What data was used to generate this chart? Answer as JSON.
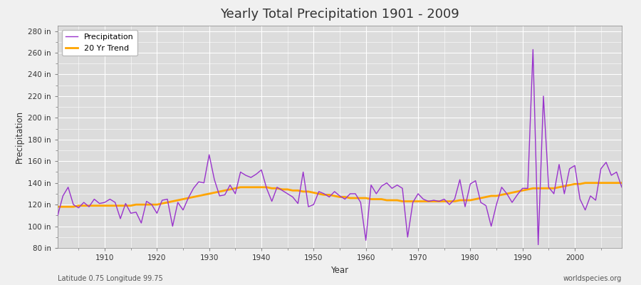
{
  "title": "Yearly Total Precipitation 1901 - 2009",
  "xlabel": "Year",
  "ylabel": "Precipitation",
  "subtitle": "Latitude 0.75 Longitude 99.75",
  "watermark": "worldspecies.org",
  "precip_color": "#9933CC",
  "trend_color": "#FFA500",
  "bg_color": "#DCDCDC",
  "fig_bg_color": "#F0F0F0",
  "ylim": [
    80,
    285
  ],
  "yticks": [
    80,
    100,
    120,
    140,
    160,
    180,
    200,
    220,
    240,
    260,
    280
  ],
  "xticks": [
    1910,
    1920,
    1930,
    1940,
    1950,
    1960,
    1970,
    1980,
    1990,
    2000
  ],
  "legend_labels": [
    "Precipitation",
    "20 Yr Trend"
  ],
  "years": [
    1901,
    1902,
    1903,
    1904,
    1905,
    1906,
    1907,
    1908,
    1909,
    1910,
    1911,
    1912,
    1913,
    1914,
    1915,
    1916,
    1917,
    1918,
    1919,
    1920,
    1921,
    1922,
    1923,
    1924,
    1925,
    1926,
    1927,
    1928,
    1929,
    1930,
    1931,
    1932,
    1933,
    1934,
    1935,
    1936,
    1937,
    1938,
    1939,
    1940,
    1941,
    1942,
    1943,
    1944,
    1945,
    1946,
    1947,
    1948,
    1949,
    1950,
    1951,
    1952,
    1953,
    1954,
    1955,
    1956,
    1957,
    1958,
    1959,
    1960,
    1961,
    1962,
    1963,
    1964,
    1965,
    1966,
    1967,
    1968,
    1969,
    1970,
    1971,
    1972,
    1973,
    1974,
    1975,
    1976,
    1977,
    1978,
    1979,
    1980,
    1981,
    1982,
    1983,
    1984,
    1985,
    1986,
    1987,
    1988,
    1989,
    1990,
    1991,
    1992,
    1993,
    1994,
    1995,
    1996,
    1997,
    1998,
    1999,
    2000,
    2001,
    2002,
    2003,
    2004,
    2005,
    2006,
    2007,
    2008,
    2009
  ],
  "precip": [
    110,
    128,
    136,
    120,
    117,
    122,
    118,
    125,
    121,
    122,
    125,
    122,
    107,
    121,
    112,
    113,
    103,
    123,
    120,
    112,
    124,
    125,
    100,
    122,
    115,
    126,
    135,
    141,
    140,
    166,
    143,
    128,
    129,
    138,
    130,
    150,
    147,
    145,
    148,
    152,
    135,
    123,
    136,
    133,
    130,
    127,
    121,
    150,
    118,
    120,
    132,
    130,
    127,
    132,
    128,
    125,
    130,
    130,
    122,
    87,
    138,
    130,
    137,
    140,
    135,
    138,
    135,
    90,
    122,
    130,
    125,
    123,
    124,
    123,
    125,
    120,
    125,
    143,
    118,
    139,
    142,
    122,
    119,
    100,
    120,
    136,
    130,
    122,
    129,
    135,
    135,
    263,
    83,
    220,
    136,
    130,
    157,
    130,
    153,
    156,
    125,
    115,
    128,
    124,
    153,
    159,
    147,
    150,
    136
  ],
  "trend": [
    118,
    118,
    118,
    118,
    119,
    119,
    119,
    119,
    119,
    119,
    119,
    119,
    119,
    119,
    119,
    120,
    120,
    120,
    120,
    120,
    121,
    122,
    123,
    124,
    125,
    126,
    127,
    128,
    129,
    130,
    131,
    132,
    133,
    134,
    135,
    136,
    136,
    136,
    136,
    136,
    136,
    135,
    135,
    134,
    134,
    133,
    133,
    132,
    132,
    131,
    130,
    129,
    129,
    128,
    127,
    127,
    126,
    126,
    126,
    126,
    125,
    125,
    125,
    124,
    124,
    124,
    123,
    123,
    123,
    123,
    123,
    123,
    123,
    123,
    123,
    123,
    123,
    124,
    124,
    124,
    125,
    126,
    127,
    128,
    128,
    129,
    130,
    131,
    132,
    133,
    134,
    135,
    135,
    135,
    135,
    135,
    136,
    137,
    138,
    139,
    139,
    140,
    140,
    140,
    140,
    140,
    140,
    140,
    140
  ]
}
